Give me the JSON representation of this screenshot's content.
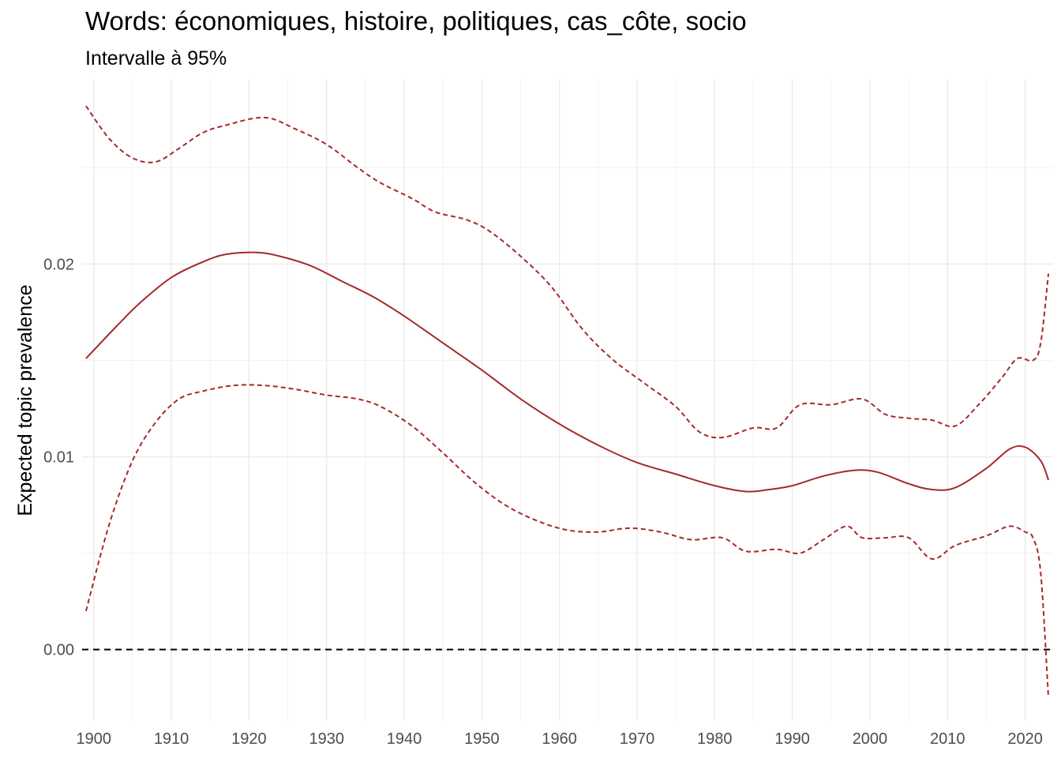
{
  "chart_data": {
    "type": "line",
    "title": "Words: économiques, histoire, politiques, cas_côte, socio",
    "subtitle": "Intervalle à 95%",
    "xlabel": "",
    "ylabel": "Expected topic prevalence",
    "xlim": [
      1898.5,
      2023.5
    ],
    "ylim": [
      -0.0037,
      0.0296
    ],
    "x_ticks": [
      1900,
      1910,
      1920,
      1930,
      1940,
      1950,
      1960,
      1970,
      1980,
      1990,
      2000,
      2010,
      2020
    ],
    "y_ticks": [
      0.0,
      0.01,
      0.02
    ],
    "y_tick_labels": [
      "0.00",
      "0.01",
      "0.02"
    ],
    "grid": true,
    "reference_line": {
      "y": 0.0,
      "style": "dashed",
      "color": "#000000"
    },
    "series_color": "#A52A2A",
    "series": [
      {
        "role": "estimate",
        "style": "solid",
        "x": [
          1899,
          1903,
          1906,
          1910,
          1914,
          1917,
          1921,
          1924,
          1928,
          1932,
          1936,
          1940,
          1945,
          1950,
          1955,
          1960,
          1965,
          1970,
          1975,
          1980,
          1984,
          1987,
          1990,
          1994,
          1998,
          2001,
          2005,
          2008,
          2011,
          2015,
          2018,
          2020,
          2022,
          2023
        ],
        "values": [
          0.0151,
          0.0168,
          0.018,
          0.0193,
          0.0201,
          0.0205,
          0.0206,
          0.0204,
          0.0199,
          0.0191,
          0.0183,
          0.0173,
          0.0159,
          0.0145,
          0.013,
          0.0117,
          0.0106,
          0.0097,
          0.0091,
          0.0085,
          0.0082,
          0.0083,
          0.0085,
          0.009,
          0.0093,
          0.0092,
          0.0086,
          0.0083,
          0.0084,
          0.0094,
          0.0104,
          0.0105,
          0.0098,
          0.0088
        ]
      },
      {
        "role": "upper_ci",
        "style": "dashed",
        "x": [
          1899,
          1902,
          1905,
          1908,
          1911,
          1914,
          1917,
          1922,
          1926,
          1930,
          1934,
          1937,
          1941,
          1944,
          1948,
          1951,
          1955,
          1959,
          1963,
          1967,
          1971,
          1975,
          1978,
          1981,
          1985,
          1988,
          1991,
          1995,
          1999,
          2002,
          2005,
          2008,
          2011,
          2014,
          2017,
          2019,
          2021,
          2022,
          2023
        ],
        "values": [
          0.0282,
          0.0265,
          0.0255,
          0.0253,
          0.026,
          0.0268,
          0.0272,
          0.0276,
          0.027,
          0.0262,
          0.025,
          0.0242,
          0.0234,
          0.0227,
          0.0223,
          0.0217,
          0.0204,
          0.0188,
          0.0166,
          0.015,
          0.0138,
          0.0126,
          0.0113,
          0.011,
          0.0115,
          0.0115,
          0.0127,
          0.0127,
          0.013,
          0.0122,
          0.012,
          0.0119,
          0.0116,
          0.0127,
          0.0141,
          0.0151,
          0.015,
          0.0159,
          0.0195
        ]
      },
      {
        "role": "lower_ci",
        "style": "dashed",
        "x": [
          1899,
          1902,
          1905,
          1908,
          1911,
          1914,
          1918,
          1922,
          1926,
          1930,
          1934,
          1937,
          1941,
          1945,
          1949,
          1953,
          1957,
          1961,
          1965,
          1969,
          1973,
          1977,
          1981,
          1984,
          1988,
          1991,
          1994,
          1997,
          1999,
          2002,
          2005,
          2008,
          2011,
          2015,
          2018,
          2020,
          2021,
          2022,
          2023
        ],
        "values": [
          0.002,
          0.0065,
          0.0098,
          0.0118,
          0.013,
          0.0134,
          0.0137,
          0.0137,
          0.0135,
          0.0132,
          0.013,
          0.0126,
          0.0116,
          0.0102,
          0.0087,
          0.0075,
          0.0067,
          0.0062,
          0.0061,
          0.0063,
          0.0061,
          0.0057,
          0.0058,
          0.0051,
          0.0052,
          0.005,
          0.0057,
          0.0064,
          0.0058,
          0.0058,
          0.0058,
          0.0047,
          0.0054,
          0.0059,
          0.0064,
          0.0061,
          0.0058,
          0.004,
          -0.0025
        ]
      }
    ]
  }
}
